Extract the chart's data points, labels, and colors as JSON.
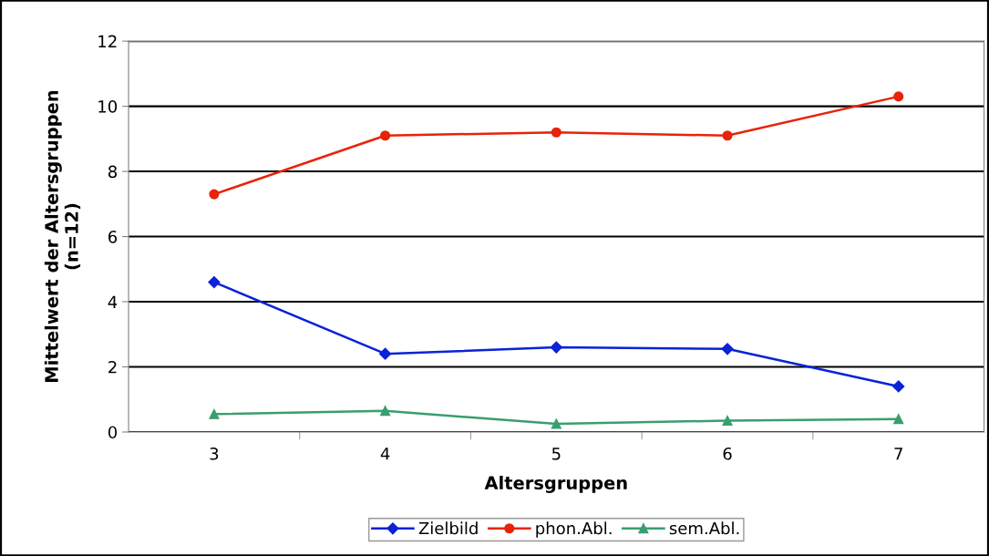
{
  "chart_data": {
    "type": "line",
    "xlabel": "Altersgruppen",
    "ylabel": "Mittelwert der Altersgruppen\n(n=12)",
    "categories": [
      "3",
      "4",
      "5",
      "6",
      "7"
    ],
    "series": [
      {
        "name": "Zielbild",
        "color": "#0a22d8",
        "marker": "diamond",
        "values": [
          4.6,
          2.4,
          2.6,
          2.55,
          1.4
        ]
      },
      {
        "name": "phon.Abl.",
        "color": "#e8230a",
        "marker": "circle",
        "values": [
          7.3,
          9.1,
          9.2,
          9.1,
          10.3
        ]
      },
      {
        "name": "sem.Abl.",
        "color": "#3a9e70",
        "marker": "triangle",
        "values": [
          0.55,
          0.65,
          0.25,
          0.35,
          0.4
        ]
      }
    ],
    "ylim": [
      0,
      12
    ],
    "yticks": [
      0,
      2,
      4,
      6,
      8,
      10,
      12
    ],
    "grid": "y",
    "legend": "bottom",
    "line_style": "solid"
  }
}
